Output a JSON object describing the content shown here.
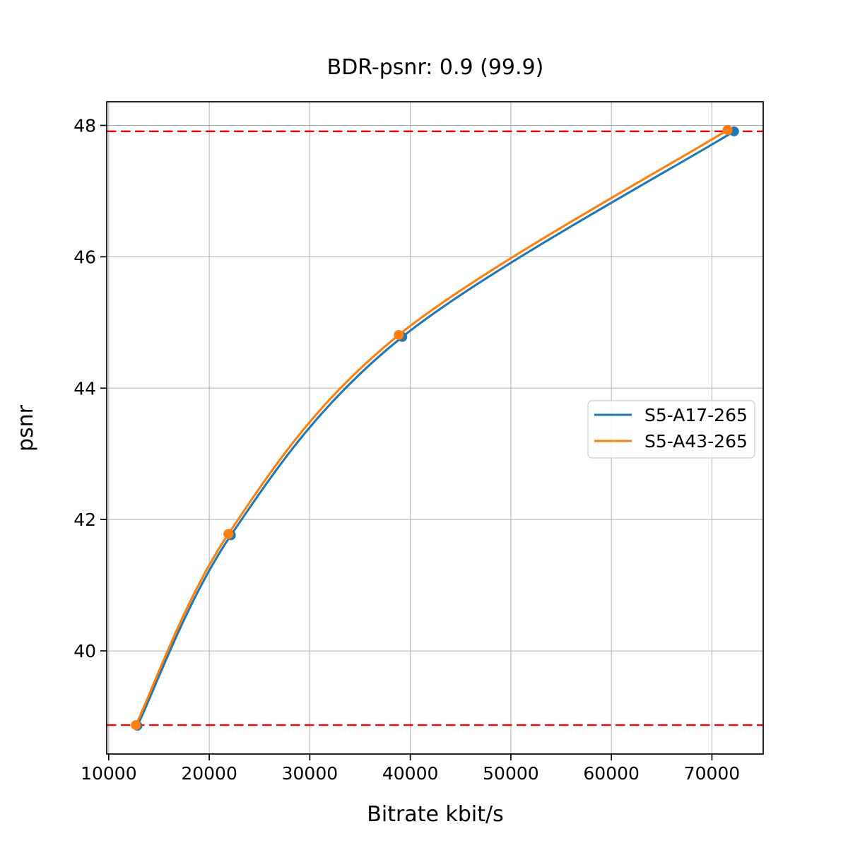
{
  "figure": {
    "background": "#ffffff",
    "spine_color": "#000000",
    "grid_color": "#b0b0b0"
  },
  "chart_data": {
    "type": "line",
    "title": "BDR-psnr: 0.9 (99.9)",
    "xlabel": "Bitrate kbit/s",
    "ylabel": "psnr",
    "xlim": [
      9800,
      75100
    ],
    "ylim": [
      38.43,
      48.36
    ],
    "xticks": [
      10000,
      20000,
      30000,
      40000,
      50000,
      60000,
      70000
    ],
    "yticks": [
      40,
      42,
      44,
      46,
      48
    ],
    "grid": true,
    "legend_position": "center right",
    "series": [
      {
        "name": "S5-A17-265",
        "color": "#1f77b4",
        "marker": "circle",
        "x": [
          12850,
          22150,
          39200,
          72200
        ],
        "y": [
          38.86,
          41.76,
          44.78,
          47.91
        ]
      },
      {
        "name": "S5-A43-265",
        "color": "#ff7f0e",
        "marker": "circle",
        "x": [
          12700,
          21900,
          38850,
          71550
        ],
        "y": [
          38.87,
          41.78,
          44.81,
          47.93
        ]
      }
    ],
    "reference_lines": [
      {
        "label": "bd-overlap-upper",
        "y": 47.91,
        "color": "#ff0000",
        "style": "dashed"
      },
      {
        "label": "bd-overlap-lower",
        "y": 38.87,
        "color": "#ff0000",
        "style": "dashed"
      }
    ]
  }
}
